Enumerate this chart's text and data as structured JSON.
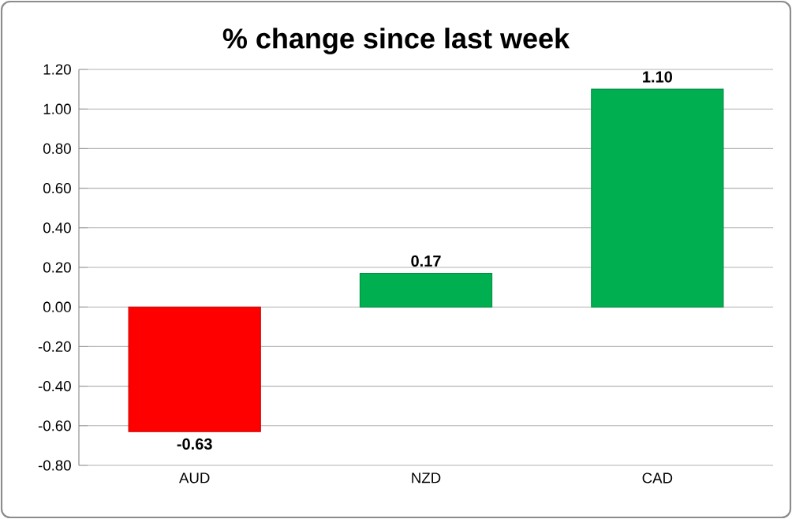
{
  "chart_data": {
    "type": "bar",
    "title": "% change since last week",
    "categories": [
      "AUD",
      "NZD",
      "CAD"
    ],
    "values": [
      -0.63,
      0.17,
      1.1
    ],
    "colors": [
      "#ff0000",
      "#00b050",
      "#00b050"
    ],
    "value_labels": [
      "-0.63",
      "0.17",
      "1.10"
    ],
    "ylim": [
      -0.8,
      1.2
    ],
    "yticks": [
      {
        "value": -0.8,
        "label": "-0.80"
      },
      {
        "value": -0.6,
        "label": "-0.60"
      },
      {
        "value": -0.4,
        "label": "-0.40"
      },
      {
        "value": -0.2,
        "label": "-0.20"
      },
      {
        "value": 0,
        "label": "0.00"
      },
      {
        "value": 0.2,
        "label": "0.20"
      },
      {
        "value": 0.4,
        "label": "0.40"
      },
      {
        "value": 0.6,
        "label": "0.60"
      },
      {
        "value": 0.8,
        "label": "0.80"
      },
      {
        "value": 1.0,
        "label": "1.00"
      },
      {
        "value": 1.2,
        "label": "1.20"
      }
    ],
    "grid": "y"
  }
}
